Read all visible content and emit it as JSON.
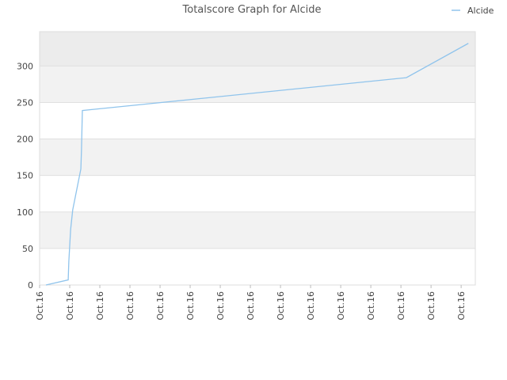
{
  "chart_data": {
    "type": "line",
    "title": "Totalscore Graph for Alcide",
    "series": [
      {
        "name": "Alcide",
        "color": "#90c4ec",
        "x": [
          0.21,
          0.95,
          0.97,
          1.03,
          1.1,
          1.37,
          1.39,
          1.42,
          12.18,
          14.24
        ],
        "values": [
          0,
          7,
          32,
          76,
          103,
          159,
          184,
          239,
          284,
          331
        ]
      }
    ],
    "xlim": [
      0,
      14.47
    ],
    "xticks": [
      {
        "value": 0,
        "label": "Oct.16"
      },
      {
        "value": 1,
        "label": "Oct.16"
      },
      {
        "value": 2,
        "label": "Oct.16"
      },
      {
        "value": 3,
        "label": "Oct.16"
      },
      {
        "value": 4,
        "label": "Oct.16"
      },
      {
        "value": 5,
        "label": "Oct.16"
      },
      {
        "value": 6,
        "label": "Oct.16"
      },
      {
        "value": 7,
        "label": "Oct.16"
      },
      {
        "value": 8,
        "label": "Oct.16"
      },
      {
        "value": 9,
        "label": "Oct.16"
      },
      {
        "value": 10,
        "label": "Oct.16"
      },
      {
        "value": 11,
        "label": "Oct.16"
      },
      {
        "value": 12,
        "label": "Oct.16"
      },
      {
        "value": 13,
        "label": "Oct.16"
      },
      {
        "value": 14,
        "label": "Oct.16"
      }
    ],
    "ylim": [
      0,
      347
    ],
    "yticks": [
      0,
      50,
      100,
      150,
      200,
      250,
      300
    ],
    "grid": true,
    "legend": "top-right"
  }
}
